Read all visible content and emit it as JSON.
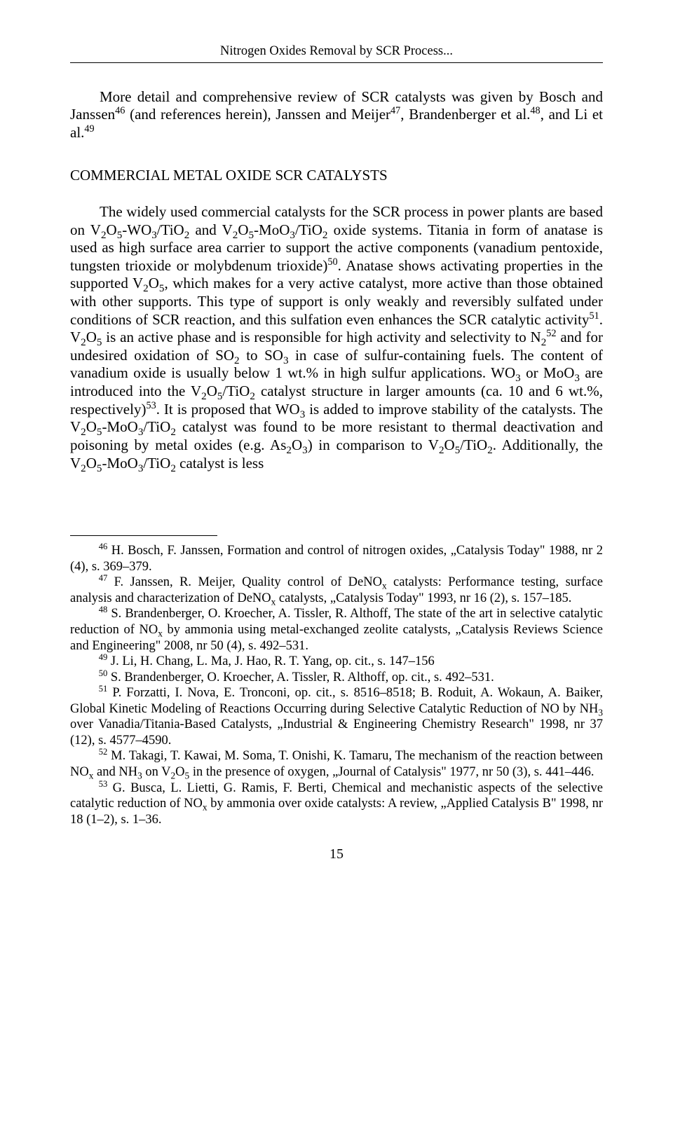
{
  "page": {
    "running_header": "Nitrogen Oxides Removal by SCR Process...",
    "page_number": "15"
  },
  "intro": {
    "pre": "More detail and comprehensive review of SCR catalysts was given by Bosch and Janssen",
    "sup1": "46",
    "mid1": " (and references herein), Janssen and Meijer",
    "sup2": "47",
    "mid2": ", Brandenberger et al.",
    "sup3": "48",
    "mid3": ", and Li et al.",
    "sup4": "49"
  },
  "section_heading": "COMMERCIAL METAL OXIDE SCR CATALYSTS",
  "body": {
    "s1a": "The widely used commercial catalysts for the SCR process in power plants are based on V",
    "s1b": "O",
    "s1c": "-WO",
    "s1d": "/TiO",
    "s1e": " and V",
    "s1f": "O",
    "s1g": "-MoO",
    "s1h": "/TiO",
    "s1i": " oxide systems. Titania in form of anatase is used as high surface area carrier to support the active components (vanadium pentoxide, tungsten trioxide or molybdenum trioxide)",
    "sup50": "50",
    "s2a": ". Anatase shows activating properties in the supported V",
    "s2b": "O",
    "s2c": ", which makes for a very active catalyst, more active than those obtained with other supports. This type of support is only weakly and reversibly sulfated under conditions of SCR reaction, and this sulfation even enhances the SCR catalytic activity",
    "sup51": "51",
    "s3a": ". V",
    "s3b": "O",
    "s3c": " is an active phase and is responsible for high activity and selectivity to N",
    "sup52": "52",
    "s4a": " and for undesired oxidation of SO",
    "s4b": " to SO",
    "s4c": " in case of sulfur-containing fuels. The content of vanadium oxide is usually below 1 wt.% in high sulfur applications. WO",
    "s4d": " or MoO",
    "s4e": " are introduced into the V",
    "s4f": "O",
    "s4g": "/TiO",
    "s4h": " catalyst structure in larger amounts (ca. 10 and 6 wt.%, respectively)",
    "sup53": "53",
    "s5a": ". It is proposed that WO",
    "s5b": " is added to improve stability of the catalysts. The V",
    "s5c": "O",
    "s5d": "-MoO",
    "s5e": "/TiO",
    "s5f": " catalyst was found to be more resistant to thermal deactivation and poisoning by metal oxides (e.g. As",
    "s5g": "O",
    "s5h": ") in comparison to V",
    "s5i": "O",
    "s5j": "/TiO",
    "s5k": ". Additionally, the V",
    "s5l": "O",
    "s5m": "-MoO",
    "s5n": "/TiO",
    "s5o": " catalyst is less"
  },
  "footnotes": {
    "n46": {
      "num": "46",
      "text": " H. Bosch, F. Janssen, Formation and control of nitrogen oxides, „Catalysis Today\" 1988, nr 2 (4), s. 369–379."
    },
    "n47a": {
      "num": "47",
      "text_a": " F. Janssen, R. Meijer, Quality control of DeNO",
      "text_b": " catalysts: Performance testing, surface analysis and characterization of DeNO",
      "text_c": " catalysts, „Catalysis Today\" 1993, nr 16 (2), s. 157–185."
    },
    "n48a": {
      "num": "48",
      "text_a": " S. Brandenberger, O. Kroecher, A. Tissler, R. Althoff, The state of the art in selective catalytic reduction of NO",
      "text_b": " by ammonia using metal-exchanged zeolite catalysts, „Catalysis Reviews Science and Engineering\" 2008, nr 50 (4), s. 492–531."
    },
    "n49": {
      "num": "49",
      "text": " J. Li, H. Chang, L. Ma, J. Hao, R. T. Yang, op. cit., s. 147–156"
    },
    "n50": {
      "num": "50",
      "text": " S. Brandenberger, O. Kroecher, A. Tissler, R. Althoff, op. cit., s. 492–531."
    },
    "n51a": {
      "num": "51",
      "text_a": " P. Forzatti, I. Nova, E. Tronconi, op. cit., s. 8516–8518; B. Roduit, A. Wokaun, A. Baiker, Global Kinetic Modeling of Reactions Occurring during Selective Catalytic Reduction of NO by NH",
      "text_b": " over Vanadia/Titania-Based Catalysts, „Industrial & Engineering Chemistry Research\" 1998, nr 37 (12), s. 4577–4590."
    },
    "n52a": {
      "num": "52",
      "text_a": " M. Takagi, T. Kawai, M. Soma, T. Onishi, K. Tamaru, The mechanism of the reaction between NO",
      "text_b": " and NH",
      "text_c": " on V",
      "text_d": "O",
      "text_e": " in the presence of oxygen, „Journal of Catalysis\" 1977, nr 50 (3), s. 441–446."
    },
    "n53a": {
      "num": "53",
      "text_a": " G. Busca, L. Lietti, G. Ramis, F. Berti, Chemical and mechanistic aspects of the selective catalytic reduction of NO",
      "text_b": " by ammonia over oxide catalysts: A review, „Applied Catalysis B\" 1998, nr 18 (1–2), s. 1–36."
    }
  },
  "subs": {
    "two": "2",
    "three": "3",
    "five": "5",
    "x": "x"
  }
}
